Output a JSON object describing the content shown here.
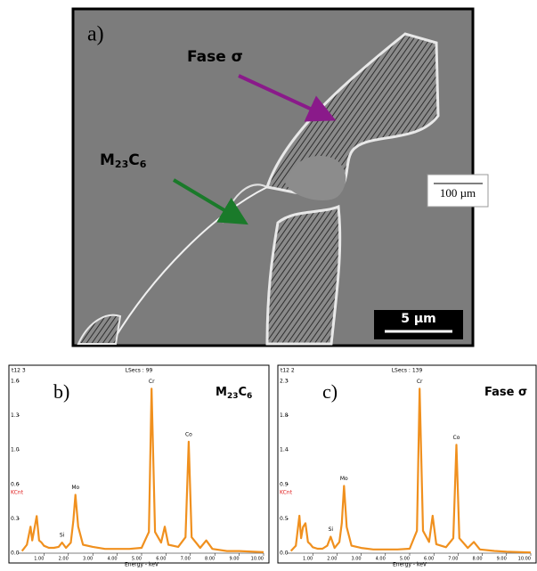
{
  "image": {
    "panel_label": "a)",
    "phase_sigma_label": "Fase σ",
    "carbide_label_parts": [
      "M",
      "23",
      "C",
      "6"
    ],
    "scale_bar": "5 µm",
    "scale_marker": "100 µm"
  },
  "chart_data": [
    {
      "type": "line",
      "panel_label": "b)",
      "header_left": "t12  3",
      "header_center": "LSecs : 99",
      "phase_label_parts": [
        "M",
        "23",
        "C",
        "6"
      ],
      "xlabel": "Energy - keV",
      "ylabel": "KCnt",
      "ylabel_color": "#e02020",
      "color": "#f0901e",
      "x": [
        0.1,
        0.3,
        0.45,
        0.52,
        0.6,
        0.7,
        0.8,
        0.9,
        1.0,
        1.2,
        1.4,
        1.6,
        1.74,
        1.9,
        2.1,
        2.2,
        2.29,
        2.4,
        2.6,
        3.0,
        3.5,
        4.0,
        4.5,
        5.0,
        5.3,
        5.41,
        5.55,
        5.8,
        5.95,
        6.1,
        6.5,
        6.8,
        6.93,
        7.05,
        7.4,
        7.65,
        7.9,
        8.5,
        9.0,
        10.0
      ],
      "values": [
        0.02,
        0.08,
        0.25,
        0.12,
        0.22,
        0.35,
        0.12,
        0.1,
        0.07,
        0.05,
        0.05,
        0.06,
        0.1,
        0.05,
        0.1,
        0.3,
        0.55,
        0.25,
        0.08,
        0.06,
        0.04,
        0.04,
        0.04,
        0.05,
        0.2,
        1.55,
        0.2,
        0.1,
        0.25,
        0.08,
        0.06,
        0.15,
        1.05,
        0.15,
        0.05,
        0.12,
        0.04,
        0.02,
        0.02,
        0.01
      ],
      "annotations": [
        {
          "text": "Si",
          "x": 1.74
        },
        {
          "text": "Mo",
          "x": 2.29
        },
        {
          "text": "Cr",
          "x": 5.41
        },
        {
          "text": "Co",
          "x": 6.93
        }
      ],
      "xlim": [
        0,
        10
      ],
      "xticks": [
        {
          "value": 1,
          "label": "1.00"
        },
        {
          "value": 2,
          "label": "2.00"
        },
        {
          "value": 3,
          "label": "3.00"
        },
        {
          "value": 4,
          "label": "4.00"
        },
        {
          "value": 5,
          "label": "5.00"
        },
        {
          "value": 6,
          "label": "6.00"
        },
        {
          "value": 7,
          "label": "7.00"
        },
        {
          "value": 8,
          "label": "8.00"
        },
        {
          "value": 9,
          "label": "9.00"
        },
        {
          "value": 10,
          "label": "10.00"
        }
      ],
      "ylim": [
        0,
        1.62
      ],
      "yticks": [
        {
          "value": 0,
          "label": "0.0"
        },
        {
          "value": 0.324,
          "label": "0.3"
        },
        {
          "value": 0.648,
          "label": "0.6"
        },
        {
          "value": 0.972,
          "label": "1.0"
        },
        {
          "value": 1.296,
          "label": "1.3"
        },
        {
          "value": 1.62,
          "label": "1.6"
        }
      ]
    },
    {
      "type": "line",
      "panel_label": "c)",
      "header_left": "t12  2",
      "header_center": "LSecs : 139",
      "phase_label_parts": [
        "Fase σ"
      ],
      "xlabel": "Energy - keV",
      "ylabel": "KCnt",
      "ylabel_color": "#e02020",
      "color": "#f0901e",
      "x": [
        0.1,
        0.3,
        0.45,
        0.52,
        0.6,
        0.7,
        0.8,
        0.9,
        1.0,
        1.2,
        1.4,
        1.6,
        1.74,
        1.9,
        2.1,
        2.2,
        2.29,
        2.4,
        2.6,
        3.0,
        3.5,
        4.0,
        4.5,
        5.0,
        5.3,
        5.41,
        5.55,
        5.8,
        5.95,
        6.1,
        6.5,
        6.8,
        6.93,
        7.05,
        7.4,
        7.65,
        7.9,
        8.5,
        9.0,
        10.0
      ],
      "values": [
        0.03,
        0.1,
        0.5,
        0.2,
        0.35,
        0.4,
        0.15,
        0.12,
        0.08,
        0.06,
        0.06,
        0.1,
        0.22,
        0.07,
        0.15,
        0.4,
        0.9,
        0.35,
        0.1,
        0.07,
        0.05,
        0.05,
        0.05,
        0.06,
        0.3,
        2.2,
        0.3,
        0.15,
        0.5,
        0.12,
        0.08,
        0.2,
        1.45,
        0.2,
        0.07,
        0.15,
        0.05,
        0.03,
        0.02,
        0.01
      ],
      "annotations": [
        {
          "text": "Si",
          "x": 1.74
        },
        {
          "text": "Mo",
          "x": 2.29
        },
        {
          "text": "Cr",
          "x": 5.41
        },
        {
          "text": "Co",
          "x": 6.93
        }
      ],
      "xlim": [
        0,
        10
      ],
      "xticks": [
        {
          "value": 1,
          "label": "1.00"
        },
        {
          "value": 2,
          "label": "2.00"
        },
        {
          "value": 3,
          "label": "3.00"
        },
        {
          "value": 4,
          "label": "4.00"
        },
        {
          "value": 5,
          "label": "5.00"
        },
        {
          "value": 6,
          "label": "6.00"
        },
        {
          "value": 7,
          "label": "7.00"
        },
        {
          "value": 8,
          "label": "8.00"
        },
        {
          "value": 9,
          "label": "9.00"
        },
        {
          "value": 10,
          "label": "10.00"
        }
      ],
      "ylim": [
        0,
        2.3
      ],
      "yticks": [
        {
          "value": 0,
          "label": "0.0"
        },
        {
          "value": 0.46,
          "label": "0.5"
        },
        {
          "value": 0.92,
          "label": "0.9"
        },
        {
          "value": 1.38,
          "label": "1.4"
        },
        {
          "value": 1.84,
          "label": "1.8"
        },
        {
          "value": 2.3,
          "label": "2.3"
        }
      ]
    }
  ]
}
